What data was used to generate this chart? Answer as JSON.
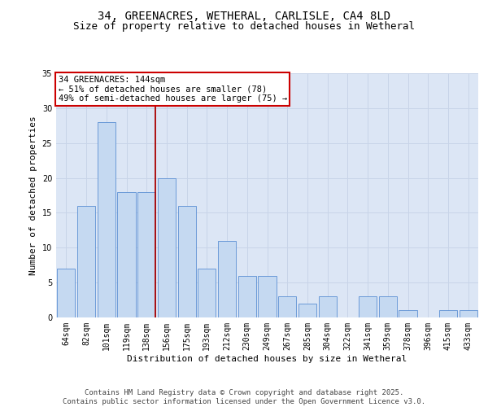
{
  "title_line1": "34, GREENACRES, WETHERAL, CARLISLE, CA4 8LD",
  "title_line2": "Size of property relative to detached houses in Wetheral",
  "xlabel": "Distribution of detached houses by size in Wetheral",
  "ylabel": "Number of detached properties",
  "categories": [
    "64sqm",
    "82sqm",
    "101sqm",
    "119sqm",
    "138sqm",
    "156sqm",
    "175sqm",
    "193sqm",
    "212sqm",
    "230sqm",
    "249sqm",
    "267sqm",
    "285sqm",
    "304sqm",
    "322sqm",
    "341sqm",
    "359sqm",
    "378sqm",
    "396sqm",
    "415sqm",
    "433sqm"
  ],
  "values": [
    7,
    16,
    28,
    18,
    18,
    20,
    16,
    7,
    11,
    6,
    6,
    3,
    2,
    3,
    0,
    3,
    3,
    1,
    0,
    1,
    1
  ],
  "bar_color": "#c5d9f1",
  "bar_edge_color": "#5b8fd4",
  "grid_color": "#c8d4e8",
  "bg_color": "#dce6f5",
  "annotation_text": "34 GREENACRES: 144sqm\n← 51% of detached houses are smaller (78)\n49% of semi-detached houses are larger (75) →",
  "annotation_box_color": "#cc0000",
  "vline_color": "#aa0000",
  "ylim": [
    0,
    35
  ],
  "yticks": [
    0,
    5,
    10,
    15,
    20,
    25,
    30,
    35
  ],
  "footer_text": "Contains HM Land Registry data © Crown copyright and database right 2025.\nContains public sector information licensed under the Open Government Licence v3.0.",
  "title_fontsize": 10,
  "subtitle_fontsize": 9,
  "axis_label_fontsize": 8,
  "tick_fontsize": 7,
  "annotation_fontsize": 7.5,
  "footer_fontsize": 6.5
}
